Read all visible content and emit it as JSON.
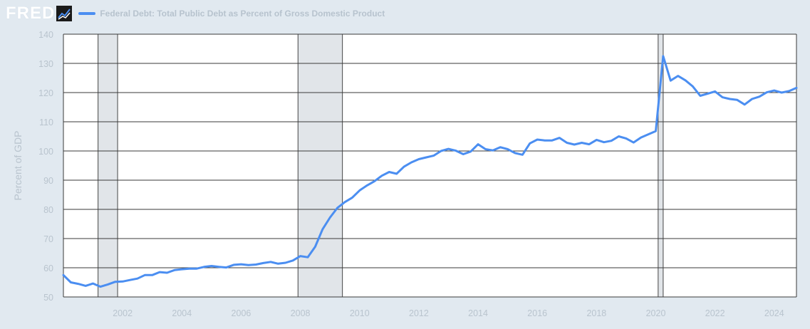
{
  "header": {
    "logo_text": "FRED",
    "logo_icon": "line-chart-icon"
  },
  "chart_data": {
    "type": "line",
    "title": "",
    "xlabel": "",
    "ylabel": "Percent of GDP",
    "xlim": [
      2000.0,
      2024.75
    ],
    "ylim": [
      50,
      140
    ],
    "y_ticks": [
      50,
      60,
      70,
      80,
      90,
      100,
      110,
      120,
      130,
      140
    ],
    "x_ticks": [
      "2002",
      "2004",
      "2006",
      "2008",
      "2010",
      "2012",
      "2014",
      "2016",
      "2018",
      "2020",
      "2022",
      "2024"
    ],
    "grid": true,
    "recessions": [
      [
        2001.17,
        2001.83
      ],
      [
        2007.92,
        2009.42
      ],
      [
        2020.08,
        2020.25
      ]
    ],
    "series": [
      {
        "name": "Federal Debt: Total Public Debt as Percent of Gross Domestic Product",
        "color": "#4b8ef1",
        "x": [
          2000.0,
          2000.25,
          2000.5,
          2000.75,
          2001.0,
          2001.25,
          2001.5,
          2001.75,
          2002.0,
          2002.25,
          2002.5,
          2002.75,
          2003.0,
          2003.25,
          2003.5,
          2003.75,
          2004.0,
          2004.25,
          2004.5,
          2004.75,
          2005.0,
          2005.25,
          2005.5,
          2005.75,
          2006.0,
          2006.25,
          2006.5,
          2006.75,
          2007.0,
          2007.25,
          2007.5,
          2007.75,
          2008.0,
          2008.25,
          2008.5,
          2008.75,
          2009.0,
          2009.25,
          2009.5,
          2009.75,
          2010.0,
          2010.25,
          2010.5,
          2010.75,
          2011.0,
          2011.25,
          2011.5,
          2011.75,
          2012.0,
          2012.25,
          2012.5,
          2012.75,
          2013.0,
          2013.25,
          2013.5,
          2013.75,
          2014.0,
          2014.25,
          2014.5,
          2014.75,
          2015.0,
          2015.25,
          2015.5,
          2015.75,
          2016.0,
          2016.25,
          2016.5,
          2016.75,
          2017.0,
          2017.25,
          2017.5,
          2017.75,
          2018.0,
          2018.25,
          2018.5,
          2018.75,
          2019.0,
          2019.25,
          2019.5,
          2019.75,
          2020.0,
          2020.25,
          2020.5,
          2020.75,
          2021.0,
          2021.25,
          2021.5,
          2021.75,
          2022.0,
          2022.25,
          2022.5,
          2022.75,
          2023.0,
          2023.25,
          2023.5,
          2023.75,
          2024.0,
          2024.25,
          2024.5,
          2024.75
        ],
        "values": [
          57.5,
          55.0,
          54.5,
          53.8,
          54.6,
          53.5,
          54.3,
          55.2,
          55.3,
          55.8,
          56.3,
          57.5,
          57.5,
          58.5,
          58.3,
          59.2,
          59.5,
          59.7,
          59.7,
          60.3,
          60.6,
          60.3,
          60.1,
          61.0,
          61.2,
          60.9,
          61.1,
          61.6,
          62.0,
          61.4,
          61.7,
          62.5,
          64.0,
          63.6,
          67.2,
          73.2,
          77.2,
          80.5,
          82.5,
          84.0,
          86.5,
          88.2,
          89.6,
          91.5,
          92.8,
          92.2,
          94.6,
          96.1,
          97.2,
          97.8,
          98.4,
          100.0,
          100.7,
          100.1,
          98.9,
          99.8,
          102.3,
          100.6,
          100.2,
          101.3,
          100.6,
          99.3,
          98.7,
          102.6,
          103.9,
          103.6,
          103.6,
          104.5,
          102.8,
          102.2,
          102.8,
          102.3,
          103.8,
          103.0,
          103.5,
          105.0,
          104.3,
          102.9,
          104.6,
          105.7,
          106.8,
          132.5,
          124.1,
          125.7,
          124.2,
          122.1,
          118.9,
          119.6,
          120.4,
          118.4,
          117.8,
          117.5,
          115.9,
          117.8,
          118.6,
          120.1,
          120.7,
          120.0,
          120.5,
          121.6
        ]
      }
    ]
  }
}
